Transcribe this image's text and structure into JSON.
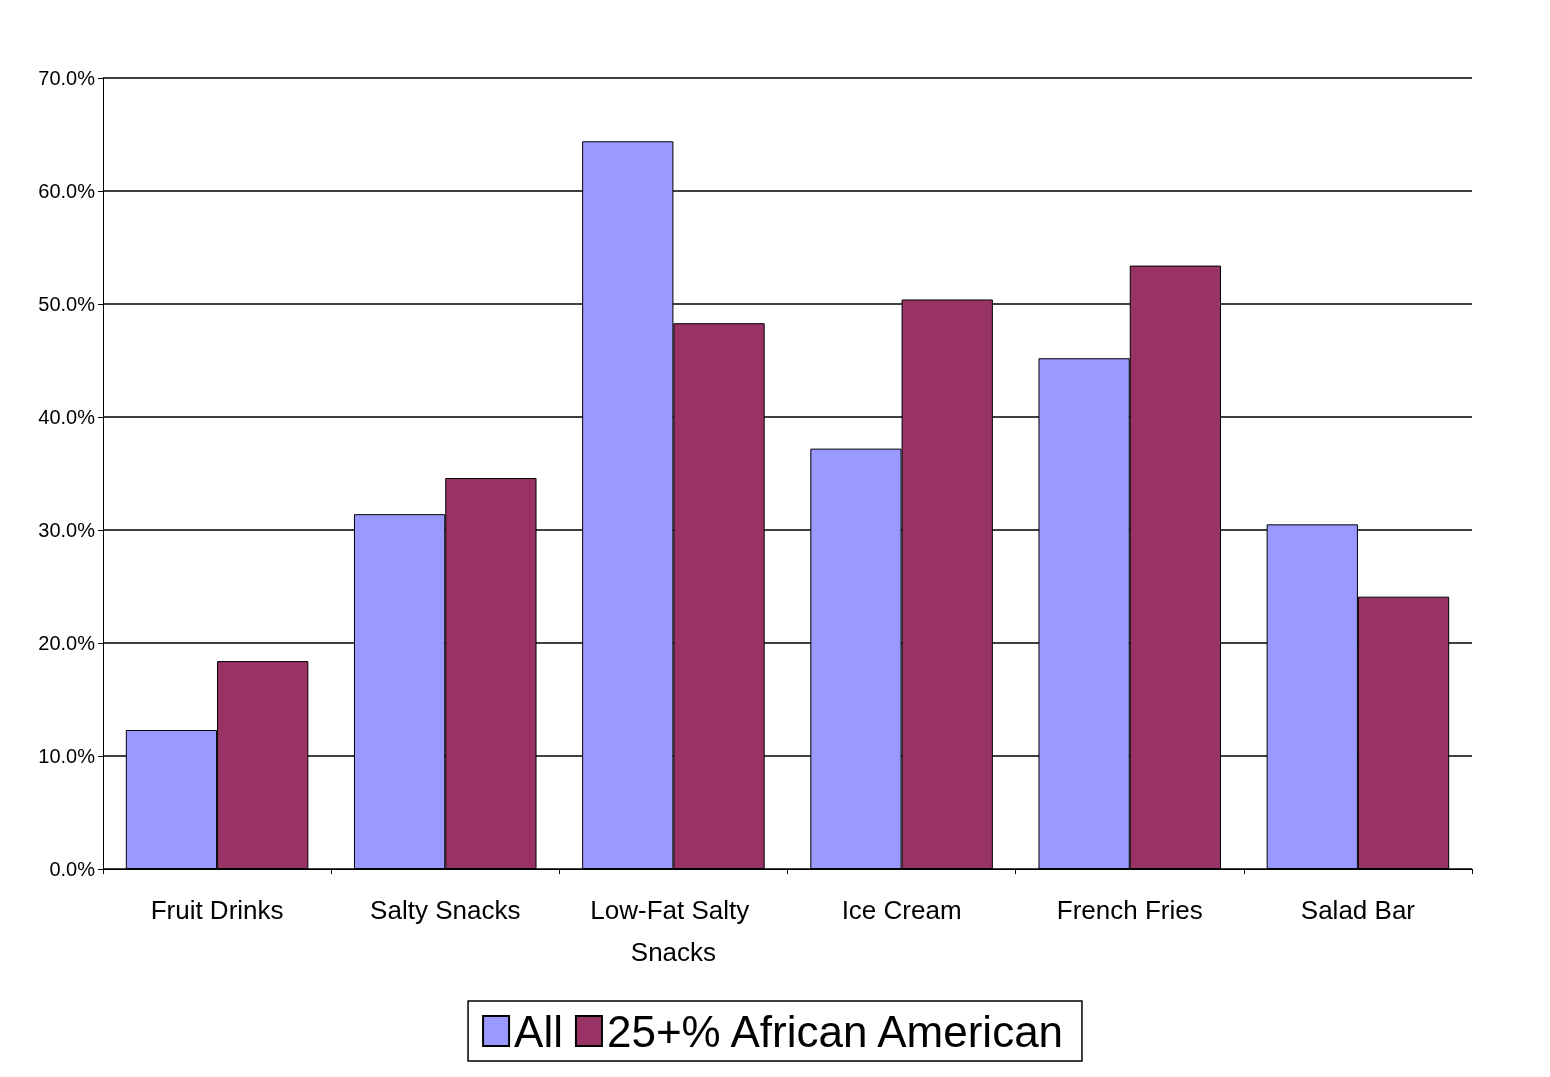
{
  "chart_data": {
    "type": "bar",
    "categories": [
      "Fruit Drinks",
      "Salty Snacks",
      "Low-Fat Salty Snacks",
      "Ice Cream",
      "French Fries",
      "Salad Bar"
    ],
    "series": [
      {
        "name": "All",
        "color": "#9999ff",
        "values": [
          12.3,
          31.4,
          64.4,
          37.2,
          45.2,
          30.5
        ]
      },
      {
        "name": "25+% African American",
        "color": "#993366",
        "values": [
          18.4,
          34.6,
          48.3,
          50.4,
          53.4,
          24.1
        ]
      }
    ],
    "ylim": [
      0,
      70
    ],
    "yticks": [
      {
        "value": 0,
        "label": "0.0%"
      },
      {
        "value": 10,
        "label": "10.0%"
      },
      {
        "value": 20,
        "label": "20.0%"
      },
      {
        "value": 30,
        "label": "30.0%"
      },
      {
        "value": 40,
        "label": "40.0%"
      },
      {
        "value": 50,
        "label": "50.0%"
      },
      {
        "value": 60,
        "label": "60.0%"
      },
      {
        "value": 70,
        "label": "70.0%"
      }
    ],
    "grid": "y",
    "legend": "bottom"
  }
}
